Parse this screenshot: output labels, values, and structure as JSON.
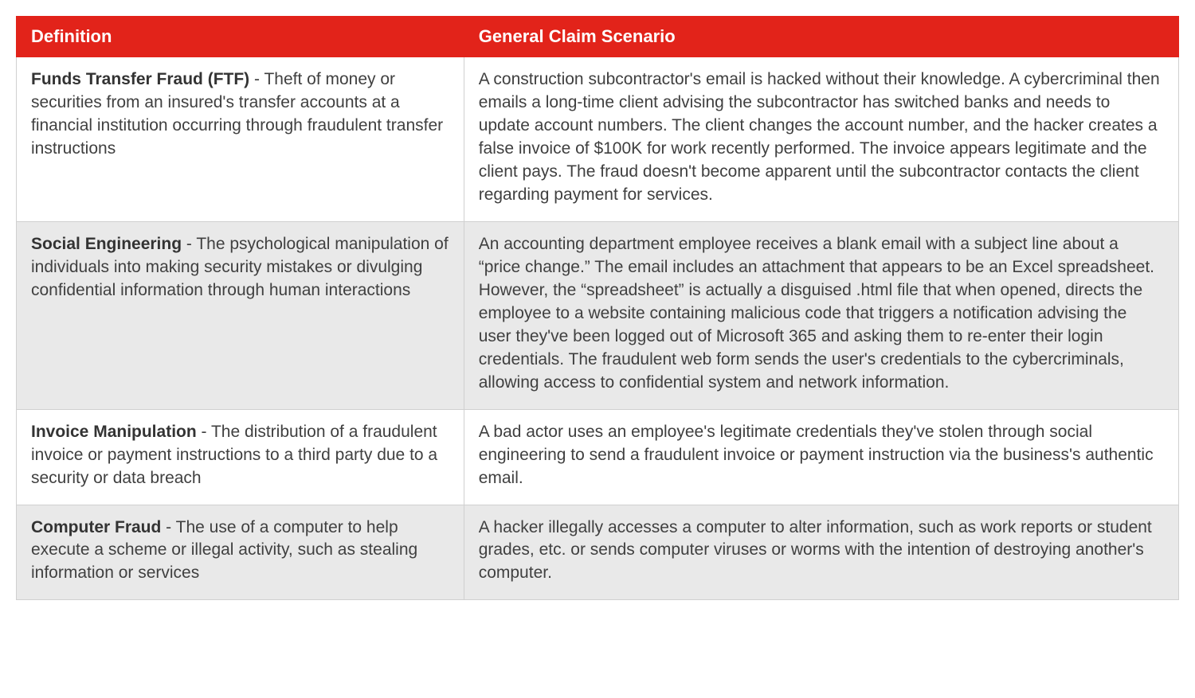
{
  "table": {
    "header_bg": "#e2231a",
    "header_fg": "#ffffff",
    "row_alt_bg": "#e9e9e9",
    "row_bg": "#ffffff",
    "border_color": "#d0d0d0",
    "text_color": "#404040",
    "font_size_body": 21,
    "font_size_header": 22,
    "columns": [
      {
        "label": "Definition",
        "width_pct": 38.5
      },
      {
        "label": "General Claim Scenario",
        "width_pct": 61.5
      }
    ],
    "rows": [
      {
        "term": "Funds Transfer Fraud (FTF)",
        "def_tail": " - Theft of money or securities from an insured's transfer accounts at a financial institution occurring through fraudulent transfer instructions",
        "scenario": "A construction subcontractor's email is hacked without their knowledge. A cybercriminal then emails a long-time client advising the subcontractor has switched banks and needs to update account numbers. The client changes the account number, and the hacker creates a false invoice of $100K for work recently performed. The invoice appears legitimate and the client pays. The fraud doesn't become apparent until the subcontractor contacts the client regarding payment for services."
      },
      {
        "term": "Social Engineering",
        "def_tail": " - The psychological manipulation of individuals into making security mistakes or divulging confidential information through human interactions",
        "scenario": "An accounting department employee receives a blank email with a subject line about a “price change.” The email includes an attachment that appears to be an Excel spreadsheet. However, the “spreadsheet” is actually a disguised .html file that when opened, directs the employee to a website containing malicious code that triggers a notification advising the user they've been logged out of Microsoft 365 and asking them to re-enter their login credentials. The fraudulent web form sends the user's credentials to the cybercriminals, allowing access to confidential system and network information."
      },
      {
        "term": "Invoice Manipulation",
        "def_tail": " - The distribution of a fraudulent invoice or payment instructions to a third party due to a security or data breach",
        "scenario": "A bad actor uses an employee's legitimate credentials they've stolen through social engineering to send a fraudulent invoice or payment instruction via the business's authentic email."
      },
      {
        "term": "Computer Fraud",
        "def_tail": " - The use of a computer to help execute a scheme or illegal activity, such as stealing information or services",
        "scenario": "A hacker illegally accesses a computer to alter information, such as work reports or student grades, etc. or sends computer viruses or worms with the intention of destroying another's computer."
      }
    ]
  }
}
